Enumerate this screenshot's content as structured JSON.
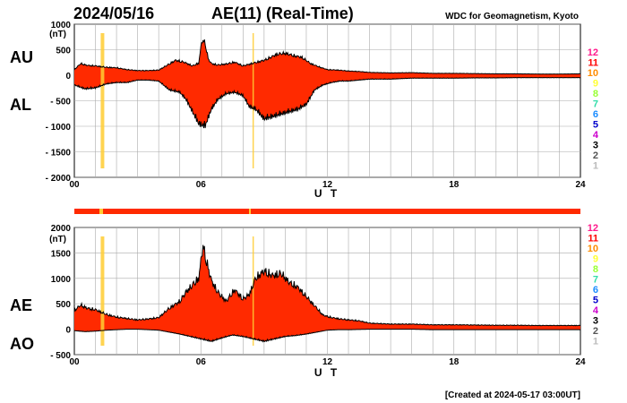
{
  "header": {
    "date": "2024/05/16",
    "title": "AE(11) (Real-Time)",
    "source": "WDC for Geomagnetism, Kyoto"
  },
  "footer": {
    "created": "[Created at 2024-05-17 03:00UT]"
  },
  "station_legend": {
    "labels": [
      "12",
      "11",
      "10",
      "9",
      "8",
      "7",
      "6",
      "5",
      "4",
      "3",
      "2",
      "1"
    ],
    "colors": [
      "#ff1a8c",
      "#ff0000",
      "#ff8c00",
      "#ffff33",
      "#99ff33",
      "#33ddaa",
      "#1a8cff",
      "#0000cc",
      "#cc00cc",
      "#000000",
      "#555555",
      "#bbbbbb"
    ]
  },
  "colors": {
    "fill": "#ff2a00",
    "marker": "#ffcc33",
    "outline": "#000000",
    "grid": "#aaaaaa"
  },
  "chart_data": [
    {
      "type": "area",
      "upper_label": "AU",
      "lower_label": "AL",
      "unit": "(nT)",
      "xlabel": "U T",
      "xlim": [
        0,
        24
      ],
      "ylim": [
        -2000,
        1000
      ],
      "yticks": [
        1000,
        500,
        0,
        -500,
        -1000,
        -1500,
        -2000
      ],
      "ytick_labels": [
        "1000",
        "500",
        "0",
        "- 500",
        "- 1000",
        "- 1500",
        "- 2000"
      ],
      "xticks": [
        0,
        6,
        12,
        18,
        24
      ],
      "xtick_labels": [
        "00",
        "06",
        "12",
        "18",
        "24"
      ],
      "grid": true,
      "series": [
        {
          "name": "AU",
          "x": [
            0,
            0.3,
            0.6,
            1,
            1.5,
            2,
            2.5,
            3,
            3.5,
            4,
            4.5,
            4.8,
            5.2,
            5.6,
            5.9,
            6.05,
            6.2,
            6.35,
            6.5,
            6.8,
            7.2,
            7.6,
            8,
            8.5,
            9,
            9.3,
            9.6,
            10,
            10.4,
            10.8,
            11.2,
            11.6,
            12,
            12.5,
            13,
            13.5,
            14,
            15,
            16,
            17,
            18,
            19,
            20,
            21,
            22,
            23,
            24
          ],
          "y": [
            120,
            250,
            210,
            200,
            170,
            160,
            120,
            100,
            100,
            110,
            240,
            320,
            280,
            200,
            260,
            750,
            700,
            350,
            250,
            220,
            240,
            280,
            200,
            260,
            320,
            380,
            450,
            470,
            420,
            380,
            250,
            180,
            120,
            110,
            90,
            80,
            60,
            50,
            55,
            40,
            40,
            35,
            30,
            30,
            25,
            25,
            30
          ]
        },
        {
          "name": "AL",
          "x": [
            0,
            0.5,
            1,
            1.5,
            2,
            2.5,
            3,
            3.5,
            4,
            4.5,
            5,
            5.3,
            5.6,
            5.9,
            6.2,
            6.5,
            6.8,
            7.2,
            7.6,
            8,
            8.3,
            8.6,
            9,
            9.4,
            9.8,
            10.2,
            10.6,
            11,
            11.4,
            11.8,
            12.2,
            12.6,
            13,
            13.5,
            14,
            15,
            16,
            17,
            18,
            19,
            20,
            21,
            22,
            23,
            24
          ],
          "y": [
            -200,
            -280,
            -260,
            -180,
            -150,
            -150,
            -100,
            -100,
            -120,
            -300,
            -350,
            -500,
            -750,
            -1000,
            -1050,
            -700,
            -500,
            -380,
            -350,
            -420,
            -650,
            -700,
            -900,
            -850,
            -800,
            -750,
            -700,
            -600,
            -300,
            -200,
            -150,
            -120,
            -120,
            -100,
            -80,
            -80,
            -60,
            -60,
            -60,
            -55,
            -55,
            -50,
            -50,
            -50,
            -50
          ]
        }
      ]
    },
    {
      "type": "area",
      "upper_label": "AE",
      "lower_label": "AO",
      "unit": "(nT)",
      "xlabel": "U T",
      "xlim": [
        0,
        24
      ],
      "ylim": [
        -500,
        2000
      ],
      "yticks": [
        2000,
        1500,
        1000,
        500,
        0,
        -500
      ],
      "ytick_labels": [
        "2000",
        "1500",
        "1000",
        "500",
        "0",
        "- 500"
      ],
      "xticks": [
        0,
        6,
        12,
        18,
        24
      ],
      "xtick_labels": [
        "00",
        "06",
        "12",
        "18",
        "24"
      ],
      "grid": true,
      "series": [
        {
          "name": "AE",
          "x": [
            0,
            0.3,
            0.6,
            1,
            1.5,
            2,
            2.5,
            3,
            3.5,
            4,
            4.5,
            5,
            5.3,
            5.6,
            5.9,
            6.1,
            6.3,
            6.5,
            6.8,
            7.2,
            7.6,
            8,
            8.3,
            8.6,
            9,
            9.4,
            9.8,
            10.2,
            10.6,
            11,
            11.4,
            11.8,
            12.2,
            12.6,
            13,
            13.5,
            14,
            15,
            16,
            17,
            18,
            19,
            20,
            21,
            22,
            23,
            24
          ],
          "y": [
            400,
            520,
            450,
            420,
            320,
            260,
            230,
            200,
            220,
            250,
            450,
            600,
            800,
            950,
            1100,
            1800,
            1400,
            1050,
            800,
            600,
            850,
            650,
            750,
            1100,
            1250,
            1150,
            1200,
            1000,
            900,
            700,
            500,
            300,
            250,
            220,
            200,
            180,
            130,
            110,
            110,
            95,
            95,
            90,
            85,
            85,
            80,
            80,
            80
          ]
        },
        {
          "name": "AO",
          "x": [
            0,
            0.5,
            1,
            1.5,
            2,
            2.5,
            3,
            3.5,
            4,
            4.5,
            5,
            5.5,
            6,
            6.5,
            7,
            7.5,
            8,
            8.5,
            9,
            9.5,
            10,
            10.5,
            11,
            11.5,
            12,
            12.5,
            13,
            14,
            15,
            16,
            17,
            18,
            19,
            20,
            21,
            22,
            23,
            24
          ],
          "y": [
            -30,
            -50,
            -40,
            -20,
            -10,
            0,
            0,
            -10,
            -20,
            -60,
            -100,
            -150,
            -200,
            -250,
            -180,
            -120,
            -150,
            -200,
            -250,
            -200,
            -150,
            -130,
            -100,
            -60,
            -20,
            -10,
            -10,
            0,
            0,
            0,
            -10,
            -10,
            -10,
            -10,
            -10,
            -10,
            -10,
            -10
          ]
        }
      ]
    }
  ]
}
